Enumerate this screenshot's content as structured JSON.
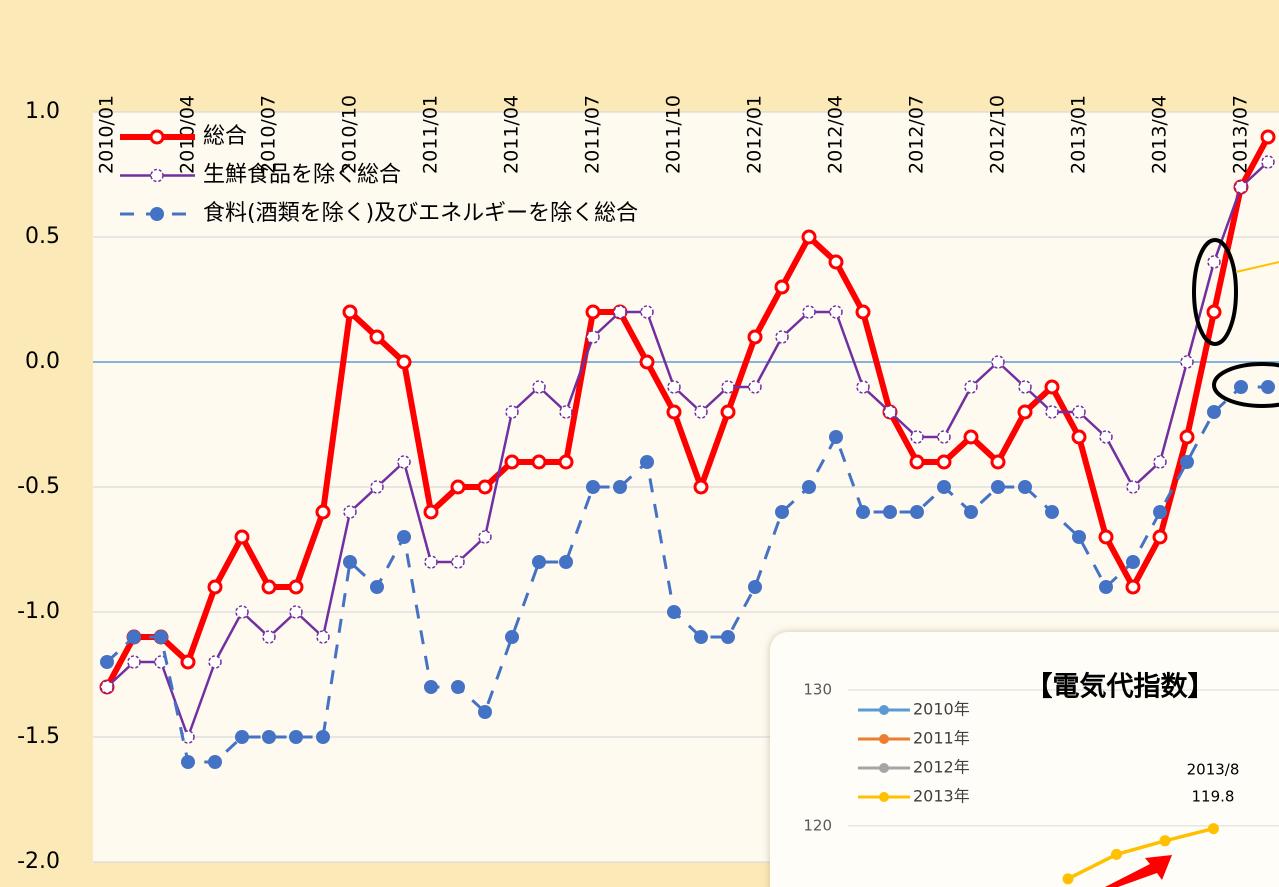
{
  "chart_data": [
    {
      "type": "line",
      "categories": [
        "2010/01",
        null,
        null,
        "2010/04",
        null,
        null,
        "2010/07",
        null,
        null,
        "2010/10",
        null,
        null,
        "2011/01",
        null,
        null,
        "2011/04",
        null,
        null,
        "2011/07",
        null,
        null,
        "2011/10",
        null,
        null,
        "2012/01",
        null,
        null,
        "2012/04",
        null,
        null,
        "2012/07",
        null,
        null,
        "2012/10",
        null,
        null,
        "2013/01",
        null,
        null,
        "2013/04",
        null,
        null,
        "2013/07",
        null
      ],
      "series": [
        {
          "name": "総合",
          "color": "#ff0000",
          "line_style": "solid",
          "values": [
            -1.3,
            -1.1,
            -1.1,
            -1.2,
            -0.9,
            -0.7,
            -0.9,
            -0.9,
            -0.6,
            0.2,
            0.1,
            0.0,
            -0.6,
            -0.5,
            -0.5,
            -0.4,
            -0.4,
            -0.4,
            0.2,
            0.2,
            0.0,
            -0.2,
            -0.5,
            -0.2,
            0.1,
            0.3,
            0.5,
            0.4,
            0.2,
            -0.2,
            -0.4,
            -0.4,
            -0.3,
            -0.4,
            -0.2,
            -0.1,
            -0.3,
            -0.7,
            -0.9,
            -0.7,
            -0.3,
            0.2,
            0.7,
            0.9
          ]
        },
        {
          "name": "生鮮食品を除く総合",
          "color": "#7030a0",
          "line_style": "solid",
          "values": [
            -1.3,
            -1.2,
            -1.2,
            -1.5,
            -1.2,
            -1.0,
            -1.1,
            -1.0,
            -1.1,
            -0.6,
            -0.5,
            -0.4,
            -0.8,
            -0.8,
            -0.7,
            -0.2,
            -0.1,
            -0.2,
            0.1,
            0.2,
            0.2,
            -0.1,
            -0.2,
            -0.1,
            -0.1,
            0.1,
            0.2,
            0.2,
            -0.1,
            -0.2,
            -0.3,
            -0.3,
            -0.1,
            0.0,
            -0.1,
            -0.2,
            -0.2,
            -0.3,
            -0.5,
            -0.4,
            0.0,
            0.4,
            0.7,
            0.8
          ]
        },
        {
          "name": "食料(酒類を除く)及びエネルギーを除く総合",
          "color": "#4472c4",
          "line_style": "dashed",
          "values": [
            -1.2,
            -1.1,
            -1.1,
            -1.6,
            -1.6,
            -1.5,
            -1.5,
            -1.5,
            -1.5,
            -0.8,
            -0.9,
            -0.7,
            -1.3,
            -1.3,
            -1.4,
            -1.1,
            -0.8,
            -0.8,
            -0.5,
            -0.5,
            -0.4,
            -1.0,
            -1.1,
            -1.1,
            -0.9,
            -0.6,
            -0.5,
            -0.3,
            -0.6,
            -0.6,
            -0.6,
            -0.5,
            -0.6,
            -0.5,
            -0.5,
            -0.6,
            -0.7,
            -0.9,
            -0.8,
            -0.6,
            -0.4,
            -0.2,
            -0.1,
            -0.1
          ]
        }
      ],
      "ylim": [
        -2,
        1
      ],
      "yticks": [
        {
          "value": -2,
          "label": "-2.0"
        },
        -1.5,
        {
          "value": -1,
          "label": "-1.0"
        },
        -0.5,
        {
          "value": 0,
          "label": "0.0"
        },
        0.5,
        {
          "value": 1,
          "label": "1.0"
        }
      ],
      "grid": true
    },
    {
      "type": "line",
      "title": "【電気代指数】",
      "categories": [
        null,
        null,
        null,
        null
      ],
      "series": [
        {
          "name": "2010年",
          "color": "#5b9bd5",
          "values": [
            null,
            null,
            null,
            null
          ]
        },
        {
          "name": "2011年",
          "color": "#ed7d31",
          "values": [
            null,
            null,
            null,
            null
          ]
        },
        {
          "name": "2012年",
          "color": "#a5a5a5",
          "values": [
            null,
            null,
            null,
            null
          ]
        },
        {
          "name": "2013年",
          "color": "#ffc000",
          "values": [
            116.1,
            117.9,
            118.9,
            119.8
          ]
        }
      ],
      "annotations": [
        "2013/8",
        "119.8"
      ],
      "ylim": [
        115.5,
        130
      ],
      "yticks": [
        120,
        130
      ],
      "grid": true
    }
  ]
}
